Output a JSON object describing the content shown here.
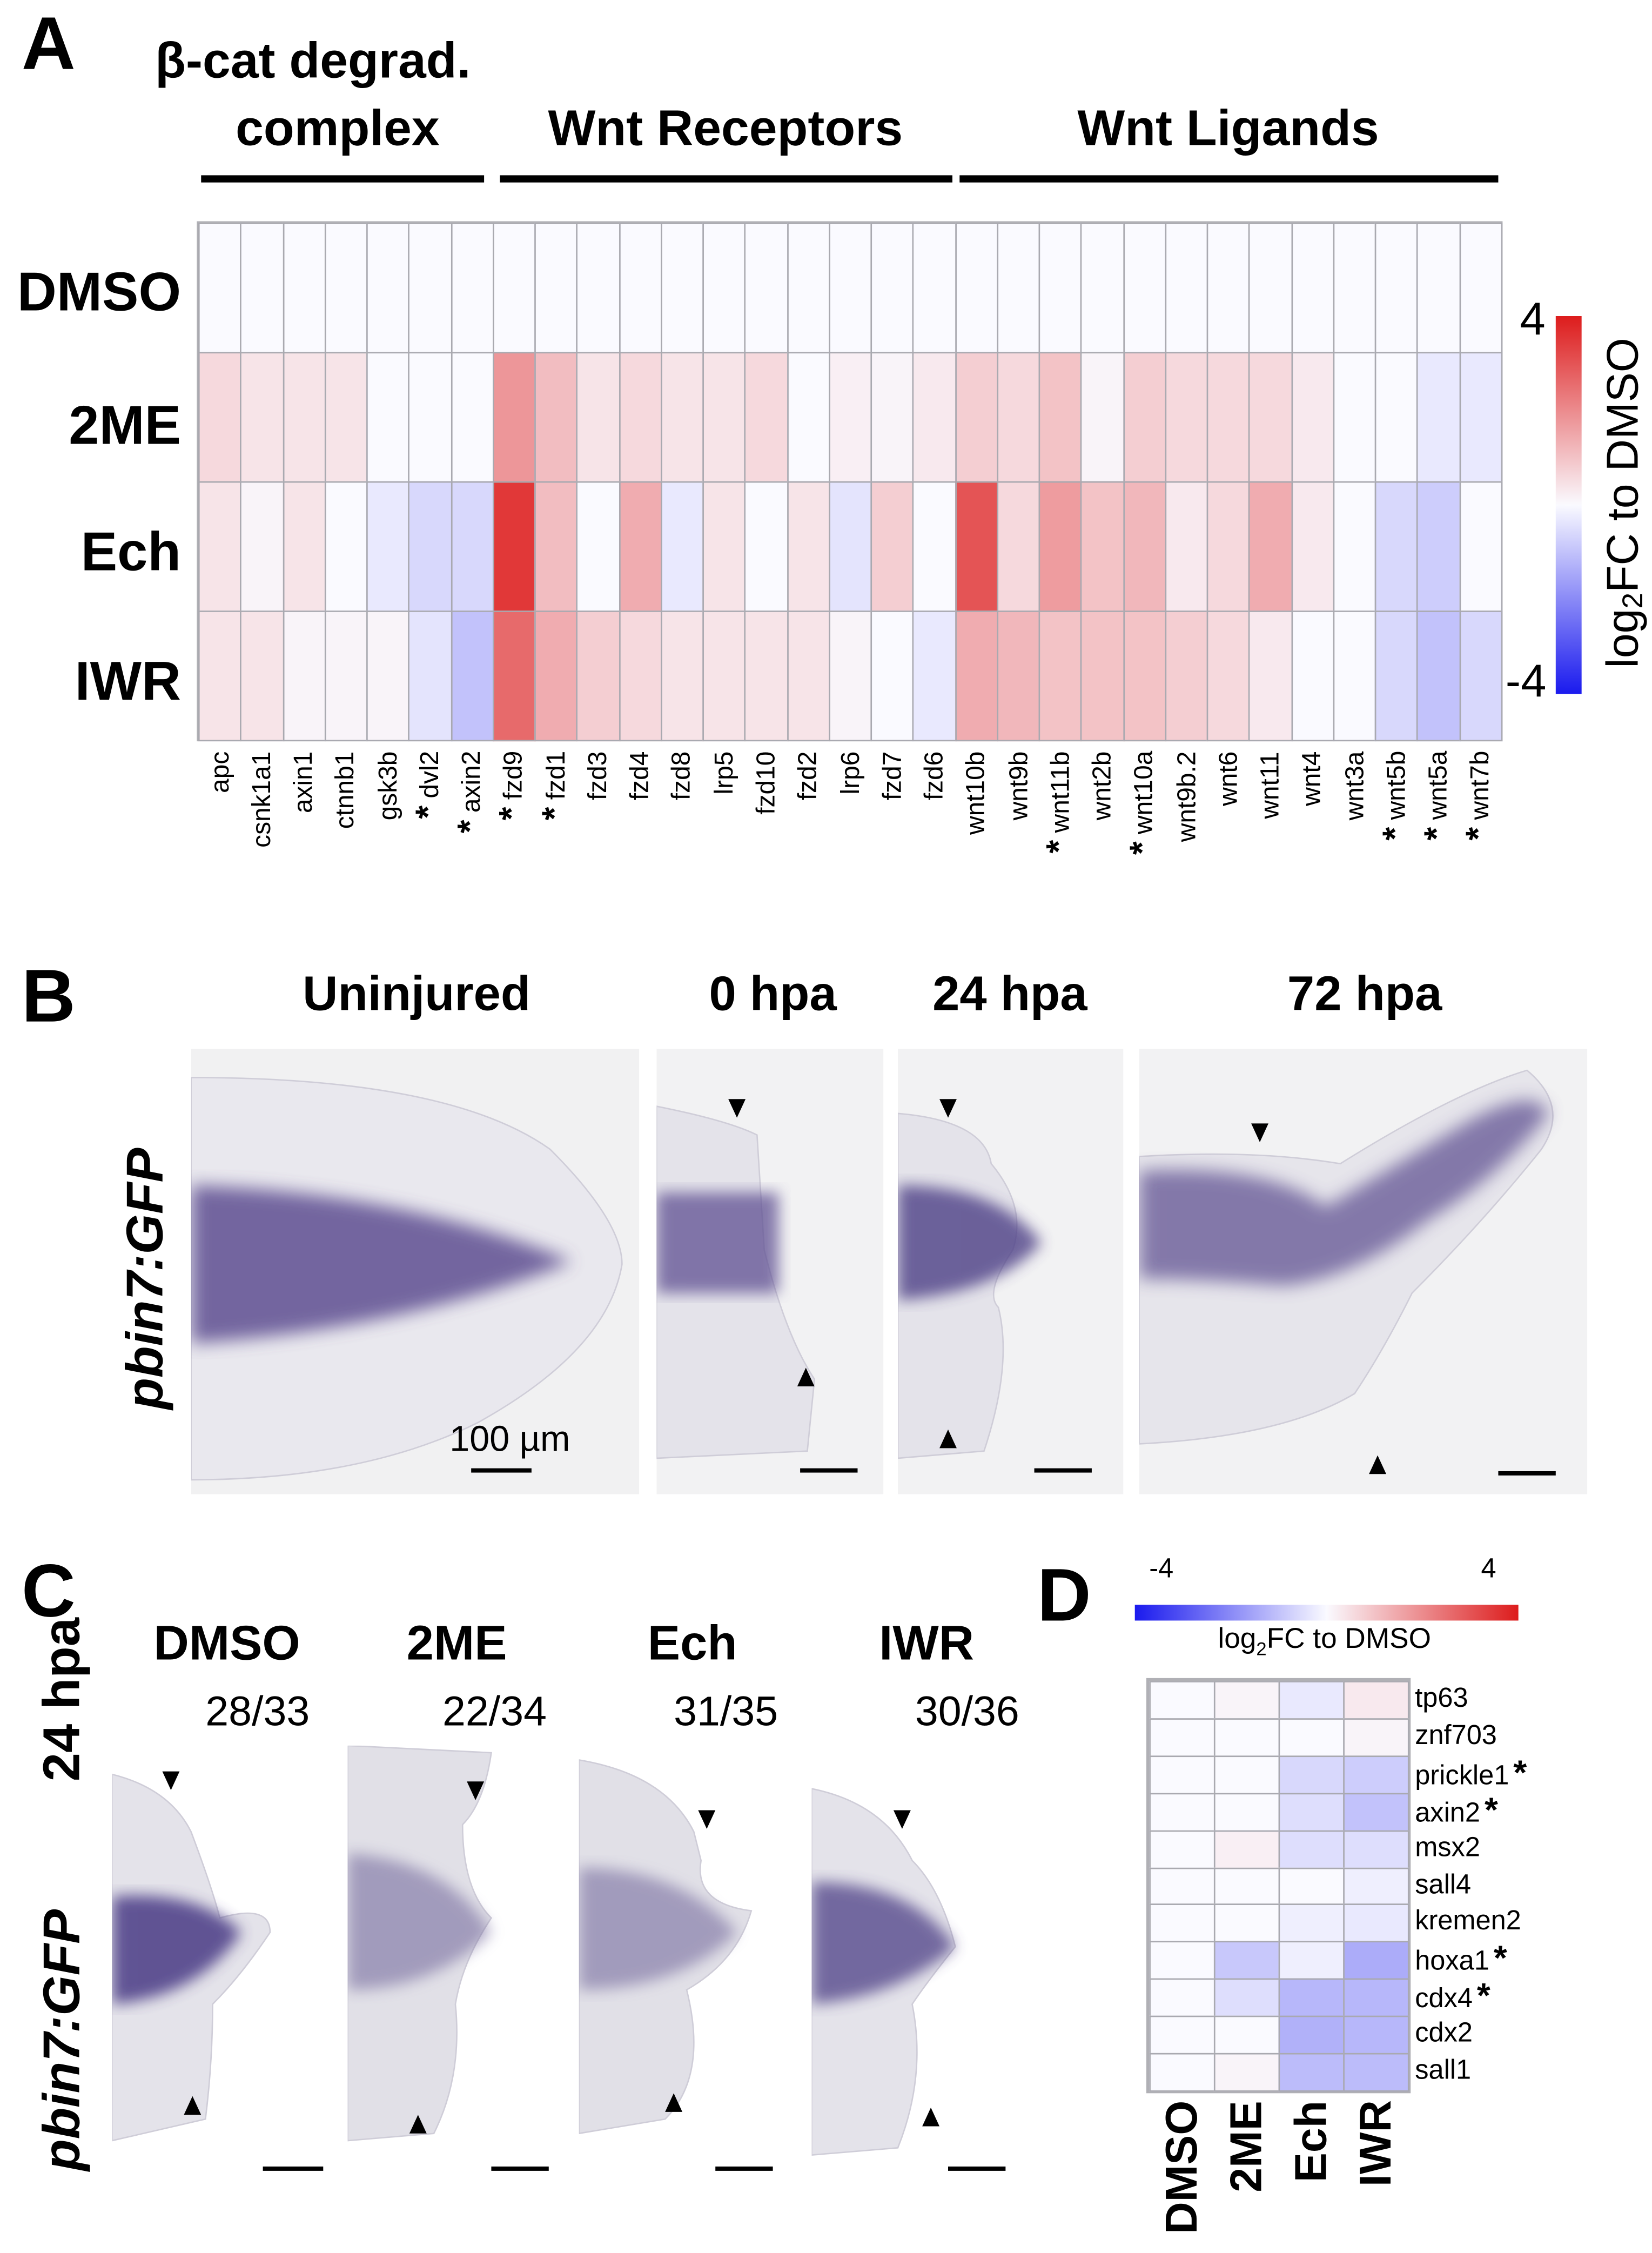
{
  "panel_labels": {
    "a": "A",
    "b": "B",
    "c": "C",
    "d": "D"
  },
  "chart_data": [
    {
      "type": "heatmap",
      "panel": "A",
      "groups": [
        {
          "label_line1": "β-cat degrad.",
          "label_line2": "complex",
          "columns": [
            "apc",
            "csnk1a1",
            "axin1",
            "ctnnb1",
            "gsk3b",
            "dvl2",
            "axin2"
          ]
        },
        {
          "label_line1": "",
          "label_line2": "Wnt Receptors",
          "columns": [
            "fzd9",
            "fzd1",
            "fzd3",
            "fzd4",
            "fzd8",
            "lrp5",
            "fzd10",
            "fzd2",
            "lrp6",
            "fzd7",
            "fzd6"
          ]
        },
        {
          "label_line1": "",
          "label_line2": "Wnt Ligands",
          "columns": [
            "wnt10b",
            "wnt9b",
            "wnt11b",
            "wnt2b",
            "wnt10a",
            "wnt9b.2",
            "wnt6",
            "wnt11",
            "wnt4",
            "wnt3a",
            "wnt5b",
            "wnt5a",
            "wnt7b"
          ]
        }
      ],
      "rows": [
        "DMSO",
        "2ME",
        "Ech",
        "IWR"
      ],
      "columns": [
        "apc",
        "csnk1a1",
        "axin1",
        "ctnnb1",
        "gsk3b",
        "dvl2",
        "axin2",
        "fzd9",
        "fzd1",
        "fzd3",
        "fzd4",
        "fzd8",
        "lrp5",
        "fzd10",
        "fzd2",
        "lrp6",
        "fzd7",
        "fzd6",
        "wnt10b",
        "wnt9b",
        "wnt11b",
        "wnt2b",
        "wnt10a",
        "wnt9b.2",
        "wnt6",
        "wnt11",
        "wnt4",
        "wnt3a",
        "wnt5b",
        "wnt5a",
        "wnt7b"
      ],
      "significant": [
        false,
        false,
        false,
        false,
        false,
        true,
        true,
        true,
        true,
        false,
        false,
        false,
        false,
        false,
        false,
        false,
        false,
        false,
        false,
        false,
        true,
        false,
        true,
        false,
        false,
        false,
        false,
        false,
        true,
        true,
        true
      ],
      "significance_mark": "*",
      "values": [
        [
          0,
          0,
          0,
          0,
          0,
          0,
          0,
          0,
          0,
          0,
          0,
          0,
          0,
          0,
          0,
          0,
          0,
          0,
          0,
          0,
          0,
          0,
          0,
          0,
          0,
          0,
          0,
          0,
          0,
          0,
          0
        ],
        [
          0.6,
          0.4,
          0.4,
          0.4,
          0,
          0,
          0,
          1.8,
          1.1,
          0.4,
          0.6,
          0.4,
          0.4,
          0.6,
          0,
          0.2,
          0.1,
          0.3,
          0.8,
          0.6,
          1.0,
          0.1,
          0.8,
          0.6,
          0.6,
          0.6,
          0.3,
          0,
          0,
          -0.3,
          -0.3
        ],
        [
          0.4,
          0.1,
          0.4,
          0,
          -0.3,
          -0.6,
          -0.6,
          3.5,
          1.1,
          0,
          1.4,
          -0.3,
          0.4,
          0,
          0.4,
          -0.4,
          0.8,
          0,
          3.0,
          0.6,
          1.7,
          1.0,
          1.2,
          0.3,
          0.6,
          1.4,
          0.3,
          0,
          -0.6,
          -0.8,
          0
        ],
        [
          0.4,
          0.4,
          0.1,
          0.1,
          0.1,
          -0.4,
          -1.0,
          2.6,
          1.4,
          0.8,
          0.6,
          0.4,
          0.4,
          0.4,
          0.4,
          0.1,
          0,
          -0.3,
          1.4,
          1.2,
          1.0,
          1.0,
          1.0,
          0.8,
          0.6,
          0.3,
          0,
          0,
          -0.6,
          -1.0,
          -0.6
        ]
      ],
      "colorbar": {
        "min": -4,
        "max": 4,
        "min_label": "-4",
        "max_label": "4",
        "label_pre": "log",
        "label_sub": "2",
        "label_post": "FC to DMSO",
        "low_color": "#1a1aee",
        "mid_color": "#fafaff",
        "high_color": "#dd1c1c"
      }
    },
    {
      "type": "heatmap",
      "panel": "D",
      "rows": [
        "tp63",
        "znf703",
        "prickle1",
        "axin2",
        "msx2",
        "sall4",
        "kremen2",
        "hoxa1",
        "cdx4",
        "cdx2",
        "sall1"
      ],
      "significant": [
        false,
        false,
        true,
        true,
        false,
        false,
        false,
        true,
        true,
        false,
        false
      ],
      "significance_mark": "*",
      "columns": [
        "DMSO",
        "2ME",
        "Ech",
        "IWR"
      ],
      "values": [
        [
          0,
          0.1,
          -0.3,
          0.3
        ],
        [
          0,
          0,
          0,
          0.1
        ],
        [
          0,
          0,
          -0.6,
          -0.8
        ],
        [
          0,
          0,
          -0.5,
          -1.0
        ],
        [
          0,
          0.2,
          -0.5,
          -0.5
        ],
        [
          0,
          0,
          0,
          -0.2
        ],
        [
          0,
          0,
          -0.2,
          -0.3
        ],
        [
          0,
          -0.9,
          -0.2,
          -1.4
        ],
        [
          0,
          -0.5,
          -1.2,
          -1.2
        ],
        [
          0,
          0,
          -1.3,
          -1.2
        ],
        [
          0,
          0.1,
          -1.1,
          -1.1
        ]
      ],
      "colorbar": {
        "min": -4,
        "max": 4,
        "min_label": "-4",
        "max_label": "4",
        "label_pre": "log",
        "label_sub": "2",
        "label_post": "FC to DMSO",
        "low_color": "#1a1aee",
        "mid_color": "#fafaff",
        "high_color": "#dd1c1c"
      }
    }
  ],
  "panel_b": {
    "row_label": "pbin7:GFP",
    "titles": [
      "Uninjured",
      "0 hpa",
      "24 hpa",
      "72 hpa"
    ],
    "scale_bar_label": "100 µm",
    "stain_color": "#5b4b8f"
  },
  "panel_c": {
    "row_label_top": "24 hpa",
    "row_label_bottom": "pbin7:GFP",
    "conditions": [
      {
        "label": "DMSO",
        "count": "28/33"
      },
      {
        "label": "2ME",
        "count": "22/34"
      },
      {
        "label": "Ech",
        "count": "31/35"
      },
      {
        "label": "IWR",
        "count": "30/36"
      }
    ]
  }
}
